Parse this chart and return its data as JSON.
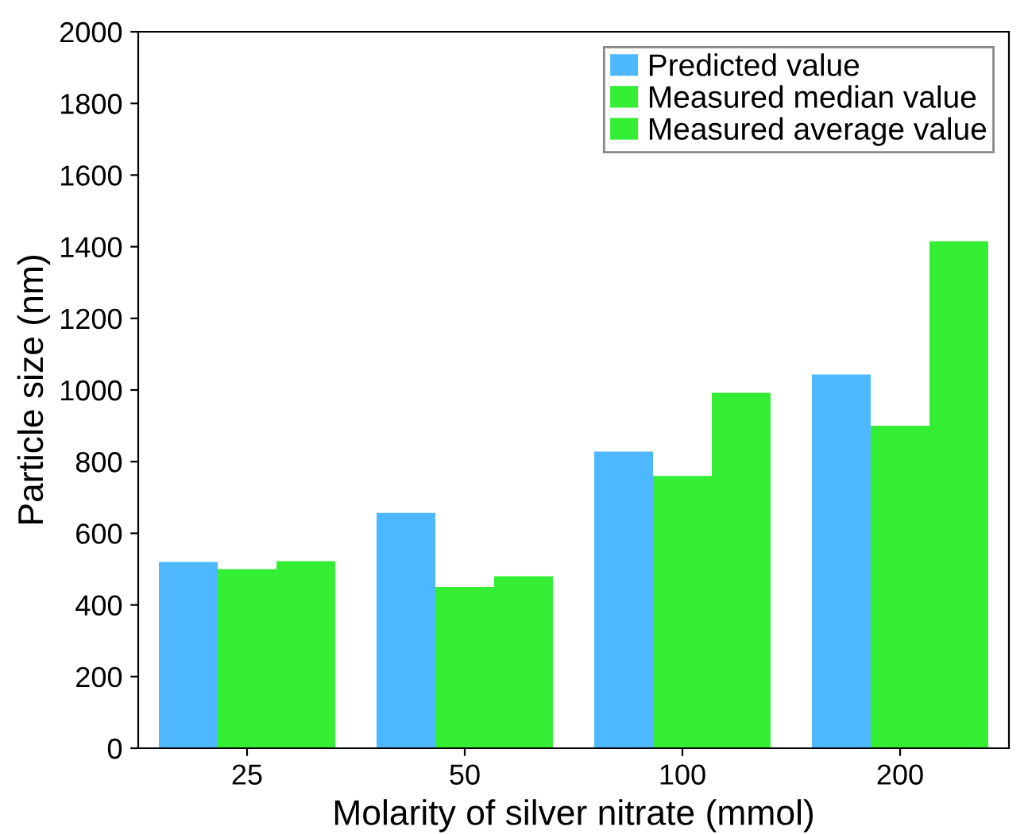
{
  "chart_data": {
    "type": "bar",
    "xlabel": "Molarity of silver nitrate (mmol)",
    "ylabel": "Particle size (nm)",
    "categories": [
      "25",
      "50",
      "100",
      "200"
    ],
    "series": [
      {
        "name": "Predicted value",
        "color": "#4db8ff",
        "values": [
          520,
          657,
          828,
          1043
        ]
      },
      {
        "name": "Measured median value",
        "color": "#33ee33",
        "values": [
          500,
          450,
          760,
          900
        ]
      },
      {
        "name": "Measured average value",
        "color": "#33ee33",
        "values": [
          522,
          480,
          992,
          1415
        ]
      }
    ],
    "ylim": [
      0,
      2000
    ],
    "yticks": [
      0,
      200,
      400,
      600,
      800,
      1000,
      1200,
      1400,
      1600,
      1800,
      2000
    ],
    "grid": false,
    "legend": "top right"
  }
}
